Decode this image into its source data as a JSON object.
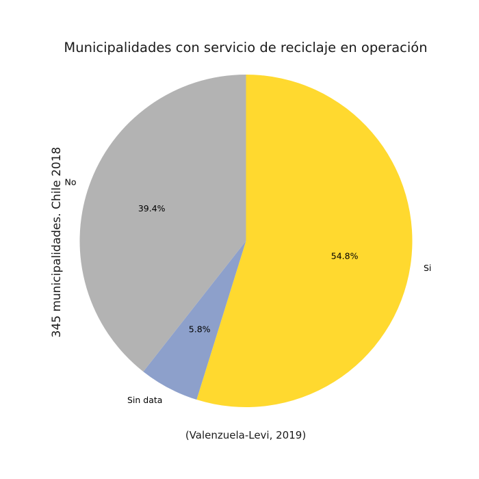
{
  "chart_data": {
    "type": "pie",
    "title": "Municipalidades con servicio de reciclaje en operación",
    "ylabel": "345 municipalidades. Chile 2018",
    "caption": "(Valenzuela-Levi, 2019)",
    "start_angle_deg": 90,
    "direction": "clockwise",
    "slices": [
      {
        "label": "Si",
        "pct_label": "54.8%",
        "value": 54.8,
        "color": "#ffd92f"
      },
      {
        "label": "Sin data",
        "pct_label": "5.8%",
        "value": 5.8,
        "color": "#8da0cb"
      },
      {
        "label": "No",
        "pct_label": "39.4%",
        "value": 39.4,
        "color": "#b3b3b3"
      }
    ]
  }
}
